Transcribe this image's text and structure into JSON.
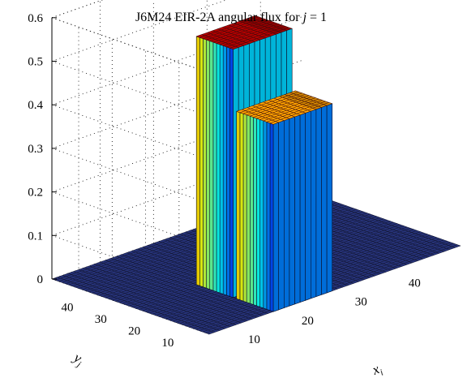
{
  "chart_data": {
    "type": "surface",
    "title_prefix": "J6M24 EIR-2A angular flux for ",
    "title_var": "j",
    "title_suffix": " = 1",
    "xlabel": "x",
    "xlabel_sub": "i",
    "ylabel": "y",
    "ylabel_sub": "j",
    "x_range": [
      1,
      48
    ],
    "y_range": [
      1,
      48
    ],
    "zlim": [
      0,
      0.6
    ],
    "x_ticks": [
      10,
      20,
      30,
      40
    ],
    "y_ticks": [
      10,
      20,
      30,
      40
    ],
    "z_ticks": [
      0,
      0.1,
      0.2,
      0.3,
      0.4,
      0.5,
      0.6
    ],
    "z_tick_labels": [
      "0",
      "0.1",
      "0.2",
      "0.3",
      "0.4",
      "0.5",
      "0.6"
    ],
    "grid": true,
    "colormap": "jet",
    "regions": [
      {
        "x": [
          13,
          24
        ],
        "y": [
          1,
          12
        ],
        "flux": 0.43
      },
      {
        "x": [
          13,
          24
        ],
        "y": [
          13,
          24
        ],
        "flux": 0.57
      }
    ],
    "background_flux": 0.0
  }
}
